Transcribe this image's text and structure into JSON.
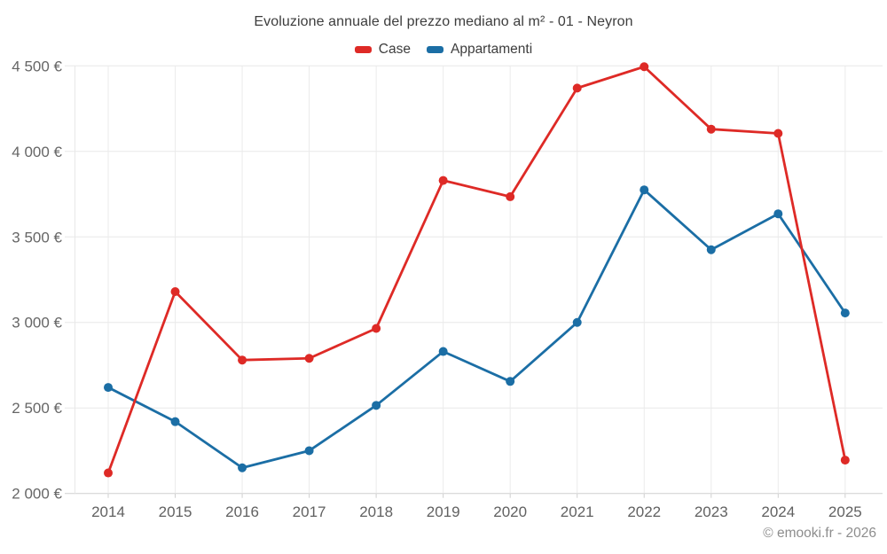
{
  "title": "Evoluzione annuale del prezzo mediano al m² - 01 - Neyron",
  "footer": "© emooki.fr - 2026",
  "legend": [
    {
      "label": "Case",
      "color": "#de2a26"
    },
    {
      "label": "Appartamenti",
      "color": "#1b6ea5"
    }
  ],
  "chart_data": {
    "type": "line",
    "title": "Evoluzione annuale del prezzo mediano al m² - 01 - Neyron",
    "x": [
      2014,
      2015,
      2016,
      2017,
      2018,
      2019,
      2020,
      2021,
      2022,
      2023,
      2024,
      2025
    ],
    "series": [
      {
        "name": "Case",
        "color": "#de2a26",
        "values": [
          2120,
          3180,
          2780,
          2790,
          2965,
          3830,
          3735,
          4370,
          4495,
          4130,
          4105,
          2195
        ]
      },
      {
        "name": "Appartamenti",
        "color": "#1b6ea5",
        "values": [
          2620,
          2420,
          2150,
          2250,
          2515,
          2830,
          2655,
          3000,
          3775,
          3425,
          3635,
          3055
        ]
      }
    ],
    "ylim": [
      2000,
      4500
    ],
    "ytick_step": 500,
    "ytick_suffix": " €",
    "grid": true,
    "legend_position": "top-center",
    "marker_radius": 5,
    "line_width": 2.8
  }
}
